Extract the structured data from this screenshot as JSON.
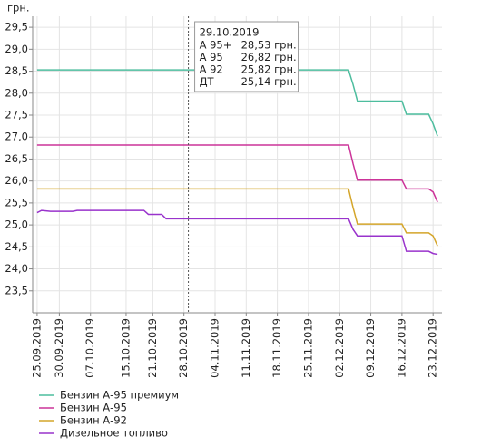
{
  "chart_data": {
    "type": "line",
    "y_label": "грн.",
    "x": [
      "25.09.2019",
      "26.09.2019",
      "28.09.2019",
      "03.10.2019",
      "04.10.2019",
      "19.10.2019",
      "20.10.2019",
      "23.10.2019",
      "24.10.2019",
      "04.12.2019",
      "05.12.2019",
      "06.12.2019",
      "16.12.2019",
      "17.12.2019",
      "22.12.2019",
      "23.12.2019",
      "24.12.2019"
    ],
    "xlim": [
      "24.09.2019",
      "25.12.2019"
    ],
    "xticks": [
      "25.09.2019",
      "30.09.2019",
      "07.10.2019",
      "15.10.2019",
      "21.10.2019",
      "28.10.2019",
      "04.11.2019",
      "11.11.2019",
      "18.11.2019",
      "25.11.2019",
      "02.12.2019",
      "09.12.2019",
      "16.12.2019",
      "23.12.2019"
    ],
    "ylim": [
      23.0,
      29.75
    ],
    "yticks": [
      {
        "value": 23.5,
        "label": "23,5"
      },
      {
        "value": 24,
        "label": "24,0"
      },
      {
        "value": 24.5,
        "label": "24,5"
      },
      {
        "value": 25,
        "label": "25,0"
      },
      {
        "value": 25.5,
        "label": "25,5"
      },
      {
        "value": 26,
        "label": "26,0"
      },
      {
        "value": 26.5,
        "label": "26,5"
      },
      {
        "value": 27,
        "label": "27,0"
      },
      {
        "value": 27.5,
        "label": "27,5"
      },
      {
        "value": 28,
        "label": "28,0"
      },
      {
        "value": 28.5,
        "label": "28,5"
      },
      {
        "value": 29,
        "label": "29,0"
      },
      {
        "value": 29.5,
        "label": "29,5"
      }
    ],
    "grid": true,
    "series": [
      {
        "name": "Бензин А-95 премиум",
        "color": "#4dbd9e",
        "values": [
          28.53,
          28.53,
          28.53,
          28.53,
          28.53,
          28.53,
          28.53,
          28.53,
          28.53,
          28.53,
          28.2,
          27.82,
          27.82,
          27.52,
          27.52,
          27.3,
          27.02
        ]
      },
      {
        "name": "Бензин А-95",
        "color": "#cc3399",
        "values": [
          26.82,
          26.82,
          26.82,
          26.82,
          26.82,
          26.82,
          26.82,
          26.82,
          26.82,
          26.82,
          26.4,
          26.02,
          26.02,
          25.82,
          25.82,
          25.75,
          25.52
        ]
      },
      {
        "name": "Бензин А-92",
        "color": "#d4a52a",
        "values": [
          25.82,
          25.82,
          25.82,
          25.82,
          25.82,
          25.82,
          25.82,
          25.82,
          25.82,
          25.82,
          25.4,
          25.02,
          25.02,
          24.82,
          24.82,
          24.75,
          24.52
        ]
      },
      {
        "name": "Дизельное топливо",
        "color": "#9933cc",
        "values": [
          25.28,
          25.33,
          25.31,
          25.31,
          25.33,
          25.33,
          25.24,
          25.24,
          25.14,
          25.14,
          24.9,
          24.75,
          24.75,
          24.4,
          24.4,
          24.35,
          24.33
        ]
      }
    ],
    "tooltip": {
      "date": "29.10.2019",
      "rows": [
        [
          "А 95+",
          "28,53 грн."
        ],
        [
          "А 95",
          "26,82 грн."
        ],
        [
          "А 92",
          "25,82 грн."
        ],
        [
          "ДТ",
          "25,14 грн."
        ]
      ]
    }
  }
}
